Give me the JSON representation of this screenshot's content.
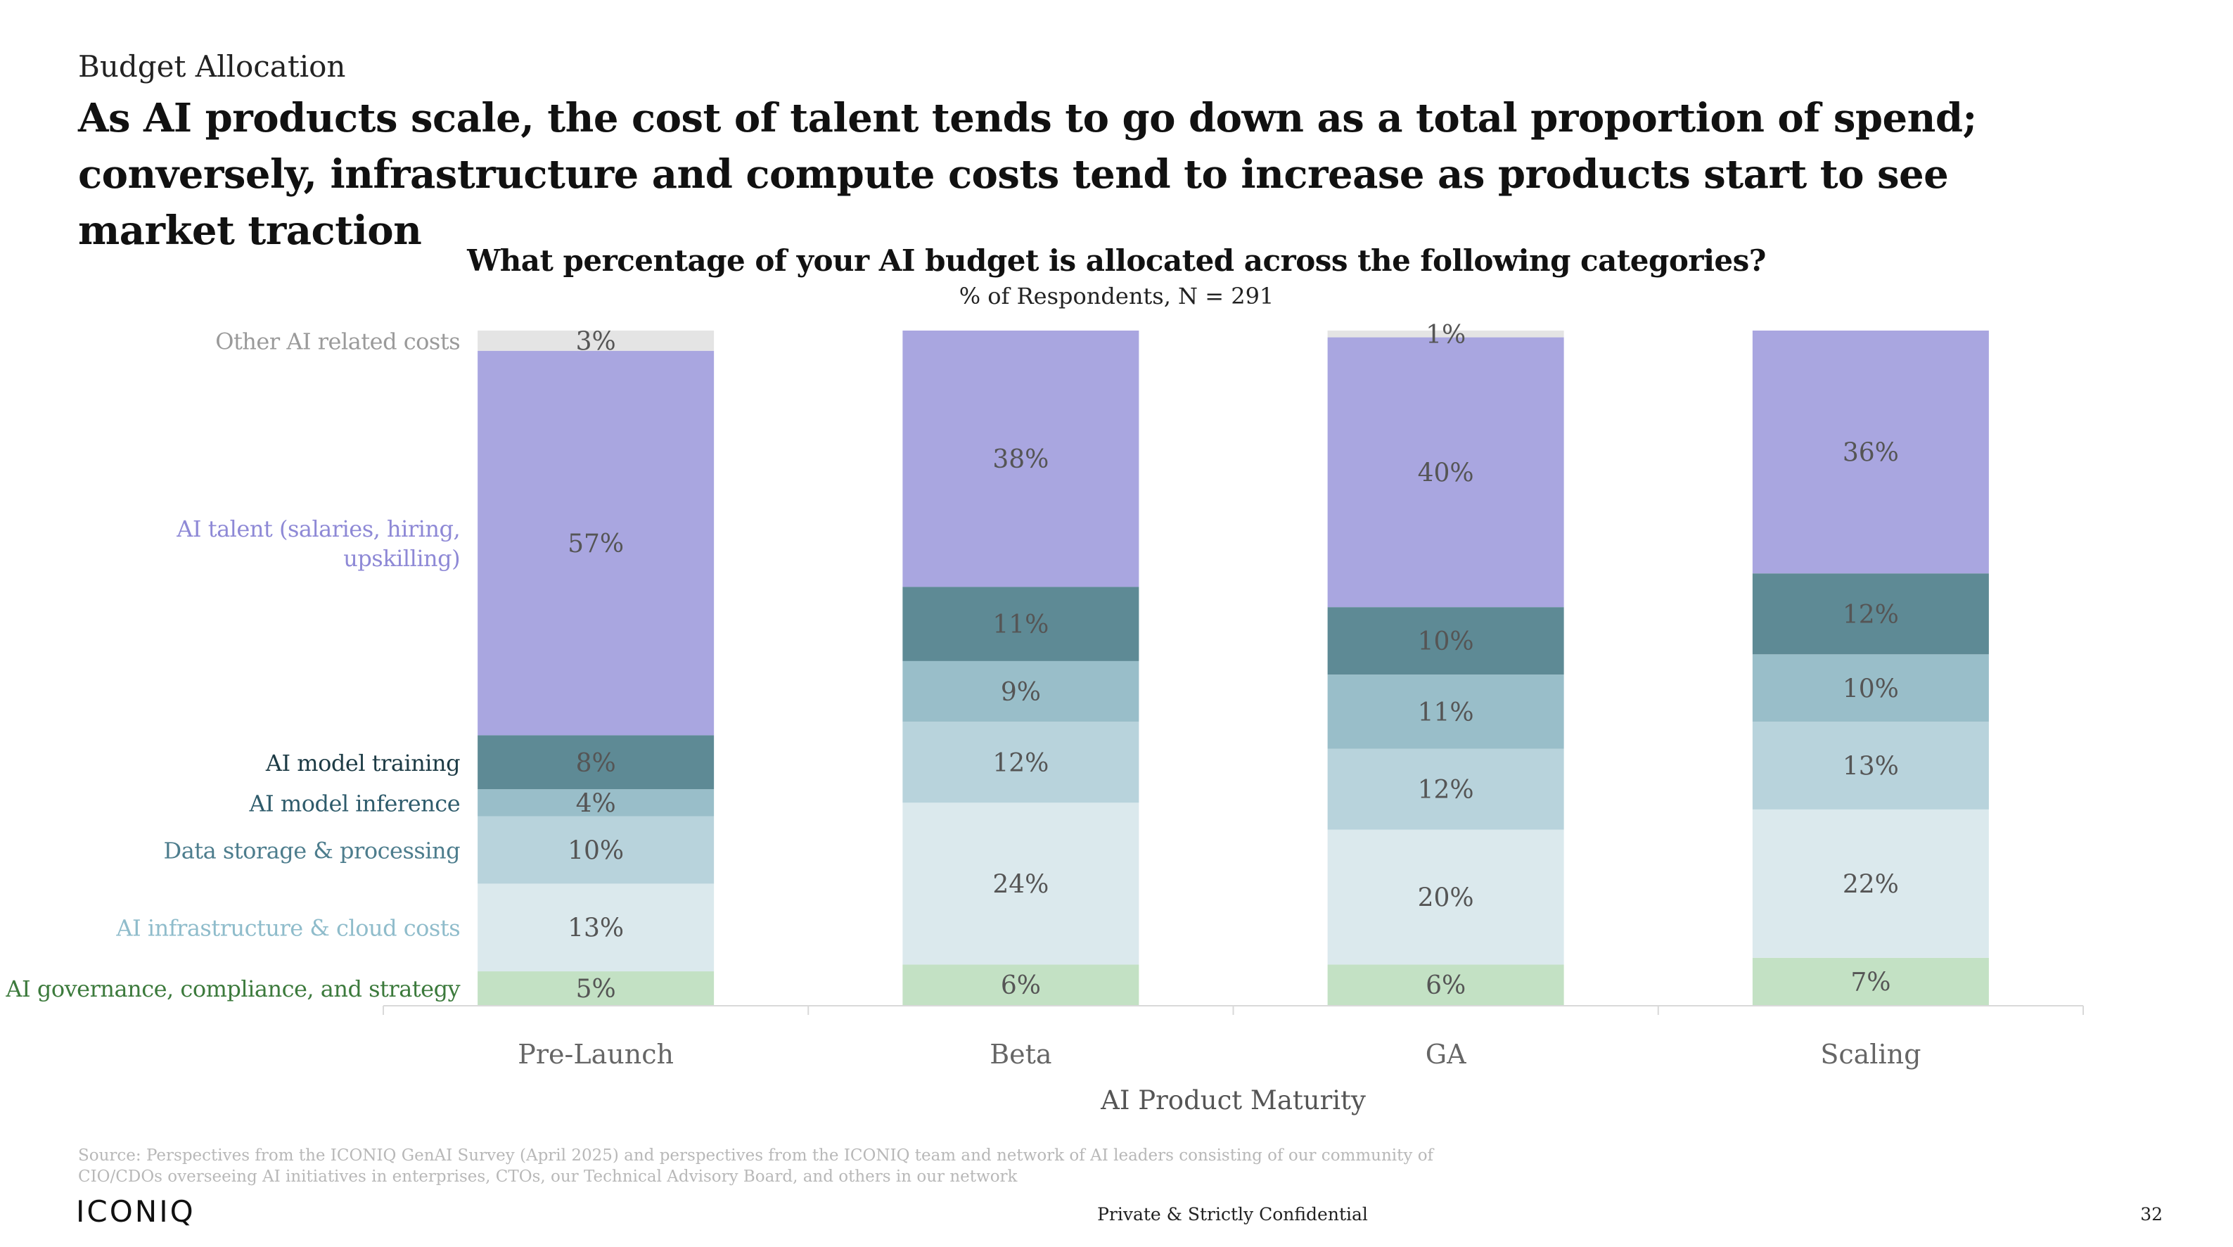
{
  "section_label": "Budget Allocation",
  "headline": "As AI products scale, the cost of talent tends to go down as a total proportion of spend; conversely, infrastructure and compute costs tend to increase as products start to see market traction",
  "chart_data": {
    "type": "bar",
    "stacked": true,
    "title": "What percentage of your AI budget is allocated across the following categories?",
    "subtitle": "% of Respondents, N = 291",
    "xlabel": "AI Product Maturity",
    "ylabel": "",
    "ylim": [
      0,
      100
    ],
    "grid": false,
    "categories": [
      "Pre-Launch",
      "Beta",
      "GA",
      "Scaling"
    ],
    "series": [
      {
        "name": "AI governance, compliance, and strategy",
        "values": [
          5,
          6,
          6,
          7
        ],
        "color": "#c3e1c4",
        "label_color": "#3c7a3c"
      },
      {
        "name": "AI infrastructure & cloud costs",
        "values": [
          13,
          24,
          20,
          22
        ],
        "color": "#dbe9ed",
        "label_color": "#8fbccb"
      },
      {
        "name": "Data storage & processing",
        "values": [
          10,
          12,
          12,
          13
        ],
        "color": "#b8d3dc",
        "label_color": "#4d7d8d"
      },
      {
        "name": "AI model inference",
        "values": [
          4,
          9,
          11,
          10
        ],
        "color": "#99bec9",
        "label_color": "#2e5b6b"
      },
      {
        "name": "AI model training",
        "values": [
          8,
          11,
          10,
          12
        ],
        "color": "#5e8a95",
        "label_color": "#1d3b45"
      },
      {
        "name": "AI talent (salaries, hiring, upskilling)",
        "values": [
          57,
          38,
          40,
          36
        ],
        "color": "#a9a6e0",
        "label_color": "#8e89d6"
      },
      {
        "name": "Other AI related costs",
        "values": [
          3,
          0,
          1,
          0
        ],
        "color": "#e4e4e4",
        "label_color": "#9a9a9a"
      }
    ],
    "data_labels": [
      [
        "5%",
        "6%",
        "6%",
        "7%"
      ],
      [
        "13%",
        "24%",
        "20%",
        "22%"
      ],
      [
        "10%",
        "12%",
        "12%",
        "13%"
      ],
      [
        "4%",
        "9%",
        "11%",
        "10%"
      ],
      [
        "8%",
        "11%",
        "10%",
        "12%"
      ],
      [
        "57%",
        "38%",
        "40%",
        "36%"
      ],
      [
        "3%",
        "",
        "1%",
        ""
      ]
    ],
    "legend_lines": [
      [
        "AI governance, compliance, and strategy"
      ],
      [
        "AI infrastructure & cloud costs"
      ],
      [
        "Data storage & processing"
      ],
      [
        "AI model inference"
      ],
      [
        "AI model training"
      ],
      [
        "AI talent (salaries, hiring,",
        "upskilling)"
      ],
      [
        "Other AI related costs"
      ]
    ],
    "legend_position": "left"
  },
  "footer": {
    "source": "Source: Perspectives from the ICONIQ GenAI Survey (April 2025) and perspectives from the ICONIQ team and network of AI leaders consisting of our community of CIO/CDOs overseeing AI initiatives in enterprises, CTOs, our Technical Advisory Board, and others in our network",
    "logo": "ICONIQ",
    "confidential": "Private & Strictly Confidential",
    "page_number": "32"
  }
}
